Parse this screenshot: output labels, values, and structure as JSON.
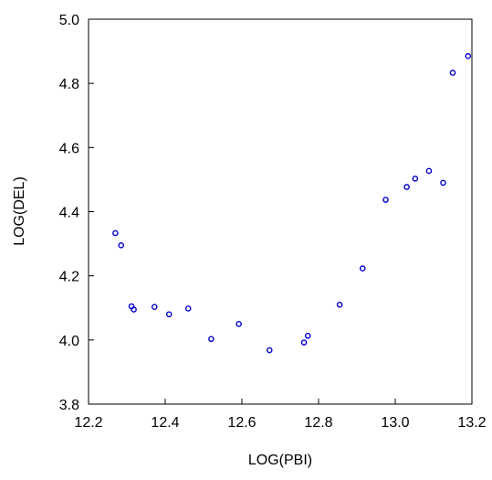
{
  "chart_data": {
    "type": "scatter",
    "title": "",
    "xlabel": "LOG(PBI)",
    "ylabel": "LOG(DEL)",
    "xlim": [
      12.2,
      13.2
    ],
    "ylim": [
      3.8,
      5.0
    ],
    "xticks": [
      12.2,
      12.4,
      12.6,
      12.8,
      13.0,
      13.2
    ],
    "yticks": [
      3.8,
      4.0,
      4.2,
      4.4,
      4.6,
      4.8,
      5.0
    ],
    "xtick_labels": [
      "12.2",
      "12.4",
      "12.6",
      "12.8",
      "13.0",
      "13.2"
    ],
    "ytick_labels": [
      "3.8",
      "4.0",
      "4.2",
      "4.4",
      "4.6",
      "4.8",
      "5.0"
    ],
    "grid": false,
    "marker_color": "#0000cc",
    "points": [
      {
        "x": 12.27,
        "y": 4.333
      },
      {
        "x": 12.285,
        "y": 4.295
      },
      {
        "x": 12.312,
        "y": 4.105
      },
      {
        "x": 12.318,
        "y": 4.095
      },
      {
        "x": 12.372,
        "y": 4.103
      },
      {
        "x": 12.41,
        "y": 4.08
      },
      {
        "x": 12.46,
        "y": 4.098
      },
      {
        "x": 12.52,
        "y": 4.003
      },
      {
        "x": 12.592,
        "y": 4.05
      },
      {
        "x": 12.672,
        "y": 3.968
      },
      {
        "x": 12.762,
        "y": 3.992
      },
      {
        "x": 12.772,
        "y": 4.013
      },
      {
        "x": 12.855,
        "y": 4.11
      },
      {
        "x": 12.915,
        "y": 4.223
      },
      {
        "x": 12.975,
        "y": 4.437
      },
      {
        "x": 13.03,
        "y": 4.477
      },
      {
        "x": 13.052,
        "y": 4.503
      },
      {
        "x": 13.088,
        "y": 4.527
      },
      {
        "x": 13.125,
        "y": 4.49
      },
      {
        "x": 13.15,
        "y": 4.833
      },
      {
        "x": 13.19,
        "y": 4.885
      }
    ]
  }
}
